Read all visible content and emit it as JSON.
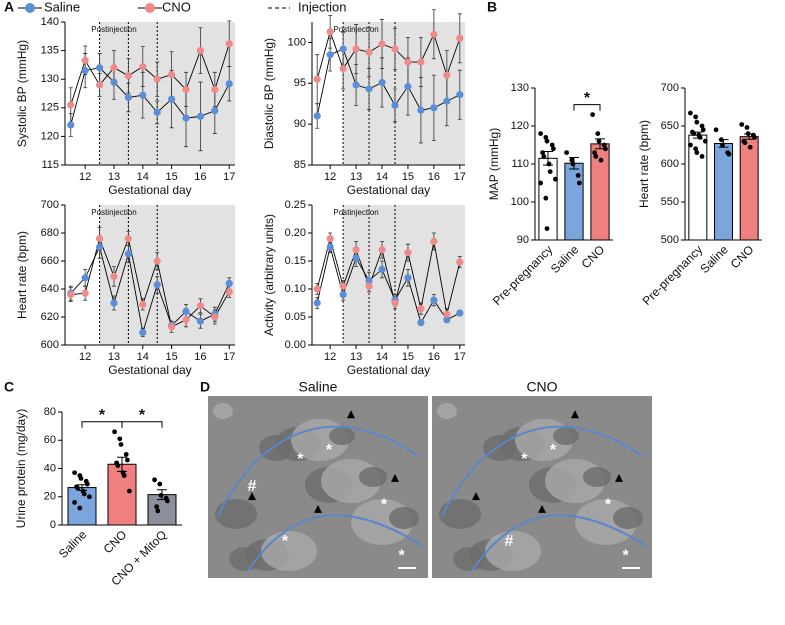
{
  "panel_labels": [
    "A",
    "B",
    "C",
    "D"
  ],
  "micrographs": [
    {
      "title": "Saline",
      "symbols": [
        "*",
        "*",
        "*",
        "*",
        "*",
        "#"
      ]
    },
    {
      "title": "CNO",
      "symbols": [
        "*",
        "*",
        "*",
        "*",
        "#"
      ]
    }
  ],
  "chart_data": [
    {
      "type": "line",
      "ylabel": "Systolic BP (mmHg)",
      "xlabel": "Gestational day",
      "annotation": "Postinjection",
      "injection_label": "Injection",
      "x": [
        11.5,
        12,
        12.5,
        13,
        13.5,
        14,
        14.5,
        15,
        15.5,
        16,
        16.5,
        17
      ],
      "xlim": [
        11.3,
        17.2
      ],
      "xticks": [
        12,
        13,
        14,
        15,
        16,
        17
      ],
      "ylim": [
        115,
        140
      ],
      "yticks": [
        115,
        120,
        125,
        130,
        135,
        140
      ],
      "shade_from": 12.5,
      "injections": [
        12.5,
        13.5,
        14.5
      ],
      "series": [
        {
          "name": "Saline",
          "color": "#5b8ed8",
          "values": [
            122,
            131.5,
            132,
            129.5,
            126.8,
            127.2,
            124.2,
            126.5,
            123.2,
            123.5,
            124.5,
            129.2
          ],
          "errors": [
            2,
            3,
            2.5,
            3,
            2.5,
            4,
            2,
            5,
            5,
            6,
            4,
            3
          ]
        },
        {
          "name": "CNO",
          "color": "#f08a8a",
          "values": [
            125.5,
            133.3,
            129,
            132,
            130.6,
            132.2,
            130,
            130.8,
            128.2,
            135,
            128.2,
            136.2
          ],
          "errors": [
            3,
            2.5,
            2,
            3,
            3,
            3.5,
            3,
            4,
            3,
            4,
            3,
            4
          ]
        }
      ]
    },
    {
      "type": "line",
      "ylabel": "Diastolic BP (mmHg)",
      "xlabel": "Gestational day",
      "annotation": "Postinjection",
      "x": [
        11.5,
        12,
        12.5,
        13,
        13.5,
        14,
        14.5,
        15,
        15.5,
        16,
        16.5,
        17
      ],
      "xlim": [
        11.3,
        17.2
      ],
      "xticks": [
        12,
        13,
        14,
        15,
        16,
        17
      ],
      "ylim": [
        85,
        102.5
      ],
      "yticks": [
        85,
        90,
        95,
        100
      ],
      "shade_from": 12.5,
      "injections": [
        12.5,
        13.5,
        14.5
      ],
      "series": [
        {
          "name": "Saline",
          "color": "#5b8ed8",
          "values": [
            91,
            98.5,
            99.2,
            94.8,
            94.3,
            95.1,
            92.3,
            94.6,
            91.7,
            92,
            92.8,
            93.6
          ],
          "errors": [
            1.5,
            2,
            2,
            2.5,
            2.5,
            3,
            2,
            3.5,
            4,
            4,
            3,
            3
          ]
        },
        {
          "name": "CNO",
          "color": "#f08a8a",
          "values": [
            95.5,
            101.3,
            96.8,
            99.2,
            98.8,
            99.8,
            99.2,
            97.6,
            97.6,
            101,
            96,
            100.5
          ],
          "errors": [
            3,
            2,
            2.5,
            3,
            3,
            3,
            2.5,
            3,
            3,
            3,
            3,
            3
          ]
        }
      ]
    },
    {
      "type": "line",
      "ylabel": "Heart rate (bpm)",
      "xlabel": "Gestational day",
      "annotation": "Postinjection",
      "x": [
        11.5,
        12,
        12.5,
        13,
        13.5,
        14,
        14.5,
        15,
        15.5,
        16,
        16.5,
        17
      ],
      "xlim": [
        11.3,
        17.2
      ],
      "xticks": [
        12,
        13,
        14,
        15,
        16,
        17
      ],
      "ylim": [
        600,
        700
      ],
      "yticks": [
        600,
        620,
        640,
        660,
        680,
        700
      ],
      "shade_from": 12.5,
      "injections": [
        12.5,
        13.5,
        14.5
      ],
      "series": [
        {
          "name": "Saline",
          "color": "#5b8ed8",
          "values": [
            637,
            648,
            670,
            630,
            665,
            609,
            643,
            614,
            624,
            617,
            622,
            644
          ],
          "errors": [
            5,
            6,
            8,
            5,
            6,
            3,
            6,
            3,
            5,
            5,
            5,
            4
          ]
        },
        {
          "name": "CNO",
          "color": "#f08a8a",
          "values": [
            636,
            637,
            676,
            649,
            676,
            629,
            660,
            613,
            618,
            628,
            620,
            638
          ],
          "errors": [
            5,
            5,
            8,
            7,
            5,
            4,
            6,
            4,
            5,
            5,
            5,
            4
          ]
        }
      ]
    },
    {
      "type": "line",
      "ylabel": "Activity (arbitrary units)",
      "xlabel": "Gestational day",
      "annotation": "Postinjection",
      "x": [
        11.5,
        12,
        12.5,
        13,
        13.5,
        14,
        14.5,
        15,
        15.5,
        16,
        16.5,
        17
      ],
      "xlim": [
        11.3,
        17.2
      ],
      "xticks": [
        12,
        13,
        14,
        15,
        16,
        17
      ],
      "ylim": [
        0,
        0.25
      ],
      "yticks": [
        {
          "value": 0,
          "label": "0.00"
        },
        0.05,
        {
          "value": 0.1,
          "label": "0.10"
        },
        0.15,
        {
          "value": 0.2,
          "label": "0.20"
        },
        0.25
      ],
      "shade_from": 12.5,
      "injections": [
        12.5,
        13.5,
        14.5
      ],
      "series": [
        {
          "name": "Saline",
          "color": "#5b8ed8",
          "values": [
            0.075,
            0.175,
            0.09,
            0.155,
            0.115,
            0.135,
            0.08,
            0.12,
            0.04,
            0.08,
            0.045,
            0.057
          ],
          "errors": [
            0.01,
            0.01,
            0.01,
            0.015,
            0.015,
            0.015,
            0.01,
            0.015,
            0.005,
            0.01,
            0.005,
            0.005
          ]
        },
        {
          "name": "CNO",
          "color": "#f08a8a",
          "values": [
            0.1,
            0.19,
            0.105,
            0.17,
            0.105,
            0.17,
            0.075,
            0.165,
            0.065,
            0.185,
            0.055,
            0.148
          ],
          "errors": [
            0.01,
            0.01,
            0.01,
            0.015,
            0.01,
            0.015,
            0.01,
            0.015,
            0.01,
            0.015,
            0.01,
            0.01
          ]
        }
      ]
    },
    {
      "type": "bar",
      "ylabel": "MAP (mmHg)",
      "categories": [
        "Pre-pregnancy",
        "Saline",
        "CNO"
      ],
      "colors": [
        "#ffffff",
        "#7aa6dd",
        "#f07f7f"
      ],
      "values": [
        111.5,
        110.2,
        115.3
      ],
      "errors": [
        1.8,
        1.5,
        1.3
      ],
      "points": [
        [
          118,
          117,
          116,
          115,
          114,
          113,
          112,
          110,
          108,
          106,
          105,
          101,
          93
        ],
        [
          113,
          111,
          110,
          107,
          105
        ],
        [
          123,
          118,
          116,
          115,
          114,
          113,
          112,
          111
        ]
      ],
      "ylim": [
        90,
        130
      ],
      "yticks": [
        90,
        100,
        110,
        120,
        130
      ],
      "comparisons": [
        {
          "between": [
            1,
            2
          ],
          "label": "*"
        }
      ]
    },
    {
      "type": "bar",
      "ylabel": "Heart rate (bpm)",
      "categories": [
        "Pre-pregnancy",
        "Saline",
        "CNO"
      ],
      "colors": [
        "#ffffff",
        "#7aa6dd",
        "#f07f7f"
      ],
      "values": [
        638,
        627,
        636
      ],
      "errors": [
        4,
        5,
        3.5
      ],
      "points": [
        [
          667,
          662,
          655,
          650,
          645,
          642,
          640,
          638,
          635,
          630,
          625,
          620,
          615,
          610
        ],
        [
          645,
          632,
          625,
          615,
          613
        ],
        [
          652,
          648,
          640,
          638,
          635,
          630,
          628,
          622
        ]
      ],
      "ylim": [
        500,
        700
      ],
      "yticks": [
        500,
        550,
        600,
        650,
        700
      ],
      "comparisons": []
    },
    {
      "type": "bar",
      "ylabel": "Urine protein (mg/day)",
      "categories": [
        "Saline",
        "CNO",
        "CNO + MitoQ"
      ],
      "colors": [
        "#7aa6dd",
        "#f07f7f",
        "#8c8f9c"
      ],
      "values": [
        26.5,
        43,
        21.5
      ],
      "errors": [
        2,
        5,
        3.5
      ],
      "points": [
        [
          37,
          35,
          33,
          31,
          29,
          27,
          26,
          24,
          22,
          20,
          16,
          12
        ],
        [
          66,
          61,
          57,
          50,
          46,
          44,
          42,
          37,
          35,
          24
        ],
        [
          32,
          29,
          21,
          19,
          17,
          13,
          10
        ]
      ],
      "ylim": [
        0,
        80
      ],
      "yticks": [
        0,
        20,
        40,
        60,
        80
      ],
      "comparisons": [
        {
          "between": [
            0,
            1
          ],
          "label": "*"
        },
        {
          "between": [
            1,
            2
          ],
          "label": "*"
        }
      ]
    }
  ]
}
